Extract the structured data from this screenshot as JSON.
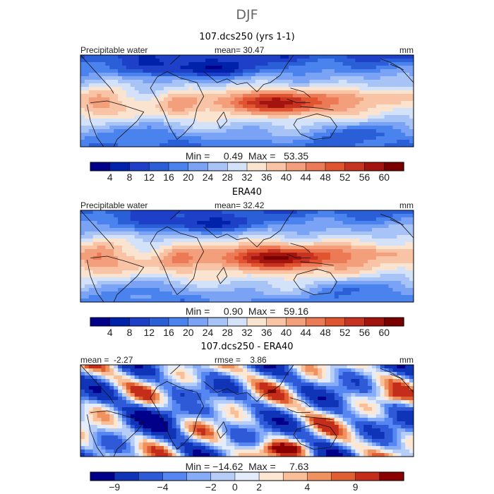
{
  "season": "DJF",
  "units": "mm",
  "colors": {
    "palette_abs": [
      "#00008b",
      "#0022aa",
      "#1e40c8",
      "#2a5fd8",
      "#4a82ee",
      "#7ba3f5",
      "#a8c4f7",
      "#d3e1f9",
      "#fbe4cf",
      "#f9c3a6",
      "#f39f7c",
      "#ec7a56",
      "#e05530",
      "#c73321",
      "#a3140f",
      "#7a0000"
    ],
    "palette_diff": [
      "#00008b",
      "#1034b8",
      "#2e5ad8",
      "#5586f2",
      "#86abf7",
      "#b6cdf8",
      "#e2ecfb",
      "#fde6d2",
      "#f9bf98",
      "#f0925f",
      "#df5f33",
      "#c32d1a",
      "#8b0000"
    ]
  },
  "panels": [
    {
      "title": "107.dcs250 (yrs 1-1)",
      "left_label": "Precipitable water",
      "center_label": "mean=  30.47",
      "units_label": "mm",
      "stats_label": "Min =     0.49  Max =   53.35"
    },
    {
      "title": "ERA40",
      "left_label": "Precipitable water",
      "center_label": "mean=  32.42",
      "units_label": "mm",
      "stats_label": "Min =     0.90  Max =   59.16"
    },
    {
      "title": "107.dcs250 - ERA40",
      "left_label": "mean =  -2.27",
      "center_label": "rmse =    3.86",
      "units_label": "mm",
      "stats_label": "Min = −14.62  Max =     7.63"
    }
  ],
  "chart_data": [
    {
      "type": "heatmap",
      "title": "107.dcs250 (yrs 1-1)",
      "variable": "Precipitable water",
      "units": "mm",
      "mean": 30.47,
      "min": 0.49,
      "max": 53.35,
      "colorbar_ticks": [
        4,
        8,
        12,
        16,
        20,
        24,
        28,
        32,
        36,
        40,
        44,
        48,
        52,
        56,
        60
      ],
      "colorbar_tick_labels": [
        "4",
        "8",
        "12",
        "16",
        "20",
        "24",
        "28",
        "32",
        "36",
        "40",
        "44",
        "48",
        "52",
        "56",
        "60"
      ],
      "lat_range": [
        -40,
        40
      ],
      "lon_range": [
        -90,
        270
      ]
    },
    {
      "type": "heatmap",
      "title": "ERA40",
      "variable": "Precipitable water",
      "units": "mm",
      "mean": 32.42,
      "min": 0.9,
      "max": 59.16,
      "colorbar_ticks": [
        4,
        8,
        12,
        16,
        20,
        24,
        28,
        32,
        36,
        40,
        44,
        48,
        52,
        56,
        60
      ],
      "colorbar_tick_labels": [
        "4",
        "8",
        "12",
        "16",
        "20",
        "24",
        "28",
        "32",
        "36",
        "40",
        "44",
        "48",
        "52",
        "56",
        "60"
      ],
      "lat_range": [
        -40,
        40
      ],
      "lon_range": [
        -90,
        270
      ]
    },
    {
      "type": "heatmap",
      "title": "107.dcs250 - ERA40",
      "units": "mm",
      "mean": -2.27,
      "rmse": 3.86,
      "min": -14.62,
      "max": 7.63,
      "colorbar_ticks": [
        -9,
        -4,
        -2,
        0,
        2,
        4,
        9
      ],
      "colorbar_tick_labels": [
        "−9",
        "−4",
        "−2",
        "0",
        "2",
        "4",
        "9"
      ],
      "lat_range": [
        -40,
        40
      ],
      "lon_range": [
        -90,
        270
      ]
    }
  ]
}
